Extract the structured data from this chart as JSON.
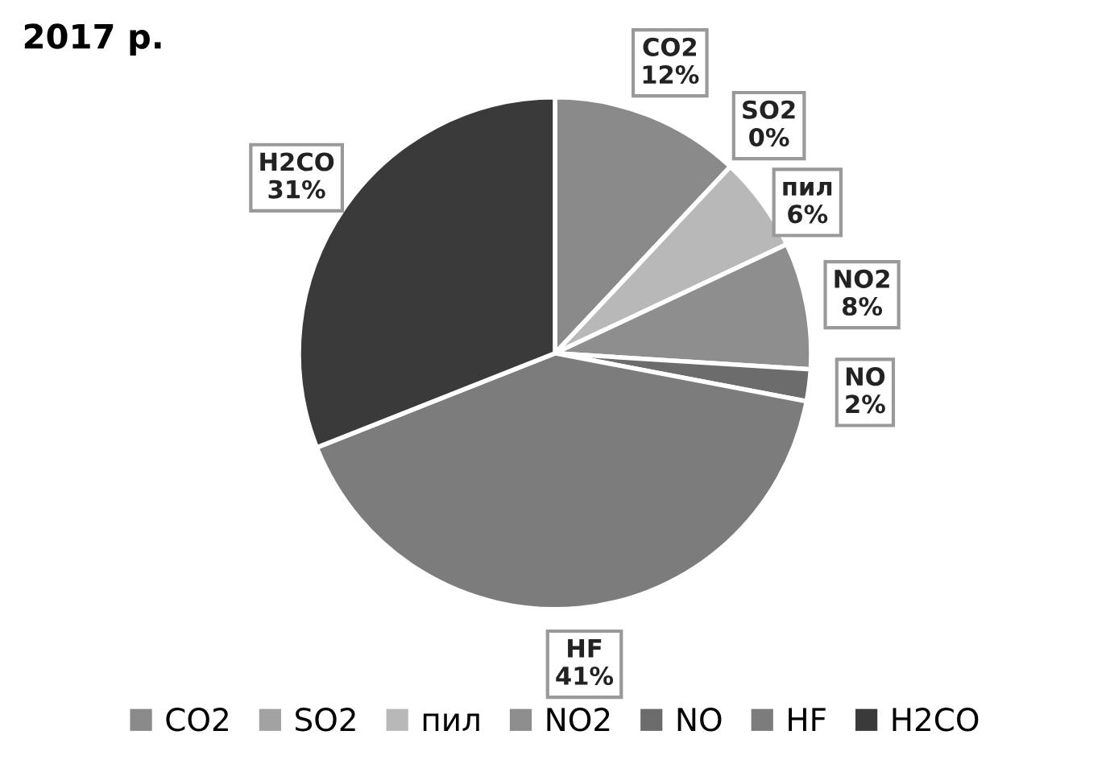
{
  "chart_data": {
    "type": "pie",
    "title": "2017 р.",
    "categories": [
      "CO2",
      "SO2",
      "пил",
      "NO2",
      "NO",
      "HF",
      "H2CO"
    ],
    "values": [
      12,
      0,
      6,
      8,
      2,
      41,
      31
    ],
    "value_labels": [
      "12%",
      "0%",
      "6%",
      "8%",
      "2%",
      "41%",
      "31%"
    ],
    "colors": [
      "#8a8a8a",
      "#a2a2a2",
      "#b8b8b8",
      "#8e8e8e",
      "#6c6c6c",
      "#7c7c7c",
      "#3a3a3a"
    ],
    "legend": "bottom"
  }
}
